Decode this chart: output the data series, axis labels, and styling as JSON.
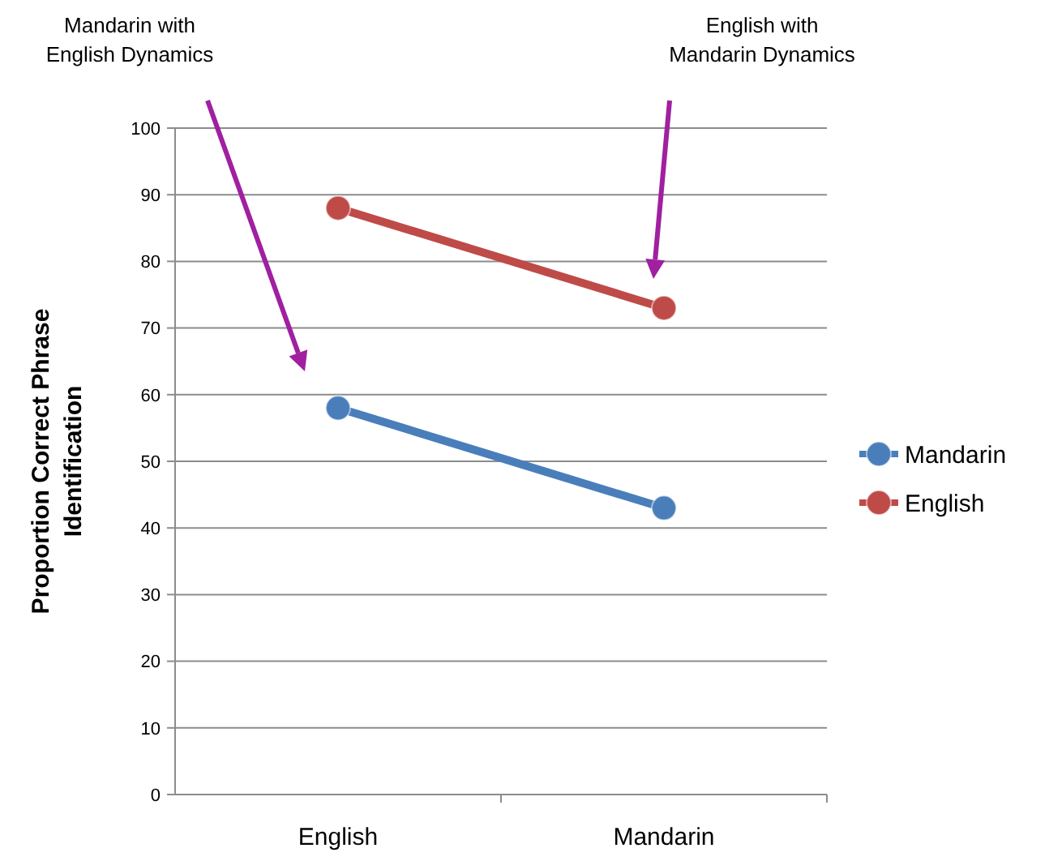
{
  "chart_data": {
    "type": "line",
    "categories": [
      "English",
      "Mandarin"
    ],
    "series": [
      {
        "name": "Mandarin",
        "color": "#4a7ebb",
        "values": [
          58,
          43
        ]
      },
      {
        "name": "English",
        "color": "#be4b48",
        "values": [
          88,
          73
        ]
      }
    ],
    "ylabel": "Proportion Correct Phrase Identification",
    "ylim": [
      0,
      100
    ],
    "yticks": [
      0,
      10,
      20,
      30,
      40,
      50,
      60,
      70,
      80,
      90,
      100
    ],
    "grid": "y",
    "legend": "right",
    "marker": "circle",
    "annotations": [
      "Mandarin with\nEnglish Dynamics",
      "English with\nMandarin Dynamics"
    ]
  }
}
